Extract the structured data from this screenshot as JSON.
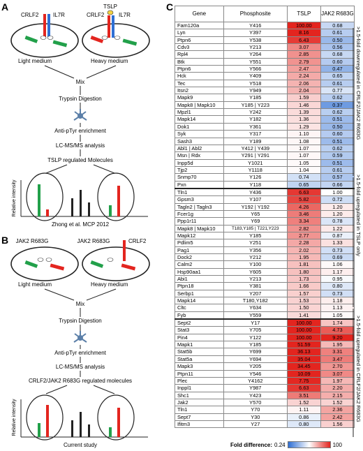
{
  "panels": {
    "a": "A",
    "b": "B",
    "c": "C"
  },
  "panel_a": {
    "receptor1": "CRLF2",
    "receptor2": "IL7R",
    "ligand": "TSLP",
    "receptor3": "CRLF2",
    "receptor4": "IL7R",
    "light": "Light medium",
    "heavy": "Heavy medium",
    "steps": [
      "Mix",
      "Trypsin Digestion",
      "Anti-pTyr enrichment",
      "LC-MS/MS analysis",
      "TSLP regulated Molecules"
    ],
    "ylabel": "Relative intensity",
    "citation": "Zhong et al. MCP 2012"
  },
  "panel_b": {
    "left_label": "JAK2 R683G",
    "right_label1": "JAK2 R683G",
    "right_label2": "CRLF2",
    "light": "Light medium",
    "heavy": "Heavy medium",
    "steps": [
      "Mix",
      "Trypsin Digestion",
      "Anti-pTyr enrichment",
      "LC-MS/MS analysis",
      "CRLF2/JAK2 R683G regulated molecules"
    ],
    "ylabel": "Relative intensity",
    "citation": "Current study"
  },
  "table": {
    "headers": [
      "Gene",
      "Phosphosite",
      "TSLP",
      "JAK2 R683G"
    ],
    "rows": [
      [
        "Fam120a",
        "Y416",
        "100.00",
        "0.68"
      ],
      [
        "Lyn",
        "Y397",
        "8.16",
        "0.61"
      ],
      [
        "Ptpn6",
        "Y538",
        "6.43",
        "0.50"
      ],
      [
        "Cdv3",
        "Y213",
        "3.07",
        "0.56"
      ],
      [
        "Rpl4",
        "Y264",
        "2.85",
        "0.68"
      ],
      [
        "Btk",
        "Y551",
        "2.79",
        "0.60"
      ],
      [
        "Ptpn6",
        "Y566",
        "2.47",
        "0.47"
      ],
      [
        "Hck",
        "Y409",
        "2.24",
        "0.65"
      ],
      [
        "Tec",
        "Y518",
        "2.06",
        "0.61"
      ],
      [
        "Itsn2",
        "Y949",
        "2.04",
        "0.77"
      ],
      [
        "Mapk9",
        "Y185",
        "1.59",
        "0.62"
      ],
      [
        "Mapk8 | Mapk10",
        "Y185 | Y223",
        "1.46",
        "0.37"
      ],
      [
        "Mpzl1",
        "Y242",
        "1.39",
        "0.62"
      ],
      [
        "Mapk14",
        "Y182",
        "1.36",
        "0.51"
      ],
      [
        "Dok1",
        "Y361",
        "1.29",
        "0.50"
      ],
      [
        "Syk",
        "Y317",
        "1.10",
        "0.60"
      ],
      [
        "Sash3",
        "Y189",
        "1.08",
        "0.51"
      ],
      [
        "Abl1 | Abl2",
        "Y412 | Y439",
        "1.07",
        "0.62"
      ],
      [
        "Msn | Rdx",
        "Y291 | Y291",
        "1.07",
        "0.59"
      ],
      [
        "Inpp5d",
        "Y1021",
        "1.05",
        "0.51"
      ],
      [
        "Tjp2",
        "Y1118",
        "1.04",
        "0.61"
      ],
      [
        "Snmp70",
        "Y126",
        "0.74",
        "0.57"
      ],
      [
        "Pxn",
        "Y118",
        "0.65",
        "0.66"
      ],
      [
        "Tln1",
        "Y436",
        "6.63",
        "1.00"
      ],
      [
        "Gpsm3",
        "Y107",
        "5.82",
        "0.72"
      ],
      [
        "Tagln2 | Tagln3",
        "Y192 | Y192",
        "4.26",
        "1.20"
      ],
      [
        "Fcer1g",
        "Y65",
        "3.46",
        "1.20"
      ],
      [
        "Ppp1r11",
        "Y69",
        "3.34",
        "0.78"
      ],
      [
        "Mapk8 | Mapk10",
        "T183,Y185 | T221,Y223",
        "2.82",
        "1.22"
      ],
      [
        "Mapk12",
        "Y185",
        "2.77",
        "0.87"
      ],
      [
        "Pdlim5",
        "Y251",
        "2.28",
        "1.33"
      ],
      [
        "Pag1",
        "Y356",
        "2.02",
        "0.73"
      ],
      [
        "Dock2",
        "Y212",
        "1.95",
        "0.69"
      ],
      [
        "Calm2",
        "Y100",
        "1.81",
        "1.06"
      ],
      [
        "Hsp90aa1",
        "Y605",
        "1.80",
        "1.17"
      ],
      [
        "Abi1",
        "Y213",
        "1.73",
        "0.95"
      ],
      [
        "Ptpn18",
        "Y381",
        "1.66",
        "0.80"
      ],
      [
        "Serbp1",
        "Y207",
        "1.57",
        "0.73"
      ],
      [
        "Mapk14",
        "T180,Y182",
        "1.53",
        "1.18"
      ],
      [
        "Cltc",
        "Y634",
        "1.50",
        "1.13"
      ],
      [
        "Fyb",
        "Y559",
        "1.41",
        "1.05"
      ],
      [
        "Sept2",
        "Y17",
        "100.00",
        "1.74"
      ],
      [
        "Stat3",
        "Y705",
        "100.00",
        "4.73"
      ],
      [
        "Pin4",
        "Y122",
        "100.00",
        "9.20"
      ],
      [
        "Mapk1",
        "Y185",
        "51.59",
        "1.95"
      ],
      [
        "Stat5b",
        "Y699",
        "36.13",
        "3.31"
      ],
      [
        "Stat5a",
        "Y694",
        "35.04",
        "3.47"
      ],
      [
        "Mapk3",
        "Y205",
        "34.45",
        "2.70"
      ],
      [
        "Ptpn11",
        "Y546",
        "10.09",
        "3.07"
      ],
      [
        "Plec",
        "Y4162",
        "7.75",
        "1.97"
      ],
      [
        "Inppl1",
        "Y987",
        "6.63",
        "2.20"
      ],
      [
        "Shc1",
        "Y423",
        "3.51",
        "2.15"
      ],
      [
        "Jak2",
        "Y570",
        "1.52",
        "1.52"
      ],
      [
        "Tln1",
        "Y70",
        "1.11",
        "2.36"
      ],
      [
        "Sept7",
        "Y30",
        "0.86",
        "2.42"
      ],
      [
        "Ifitm3",
        "Y27",
        "0.80",
        "1.56"
      ]
    ],
    "group_labels": [
      ">1.5-fold downregulated in CRLF2/JAK2 R683G",
      ">1.5-fold upregulated in TSLP only",
      ">1.5-fold upregulated in CRLF2/JAK2 R683G"
    ]
  },
  "legend": {
    "label": "Fold difference:",
    "min": "0.24",
    "max": "100"
  },
  "colors": {
    "red": "#e3251f",
    "blue": "#2f6fd4",
    "green": "#22a04a",
    "cell_outline": "#222222"
  }
}
